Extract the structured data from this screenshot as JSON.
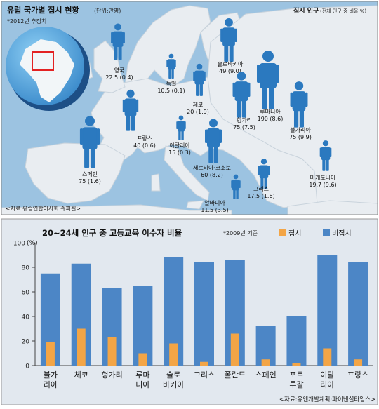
{
  "map": {
    "title": "유럽 국가별 집시 현황",
    "unit_note": "(단위:만명)",
    "estimate_note": "*2012년 추정치",
    "legend_label": "집시 인구",
    "legend_note": "(전체 인구 중 비율 %)",
    "source": "<자료:유럽연합이사회 슈피겔>",
    "colors": {
      "sea": "#9cc3e1",
      "land": "#e9edf1",
      "figure": "#2b79bf"
    },
    "countries": [
      {
        "name": "영국",
        "value": "22.5 (0.4)"
      },
      {
        "name": "독일",
        "value": "10.5 (0.1)"
      },
      {
        "name": "슬로바키아",
        "value": "49 (9.0)"
      },
      {
        "name": "체코",
        "value": "20 (1.9)"
      },
      {
        "name": "프랑스",
        "value": "40 (0.6)"
      },
      {
        "name": "헝가리",
        "value": "75 (7.5)"
      },
      {
        "name": "루마니아",
        "value": "190 (8.6)"
      },
      {
        "name": "불가리아",
        "value": "75 (9.9)"
      },
      {
        "name": "이탈리아",
        "value": "15 (0.3)"
      },
      {
        "name": "스페인",
        "value": "75 (1.6)"
      },
      {
        "name": "세르비아·코소보",
        "value": "60 (8.2)"
      },
      {
        "name": "마케도니아",
        "value": "19.7 (9.6)"
      },
      {
        "name": "그리스",
        "value": "17.5 (1.6)"
      },
      {
        "name": "알바니아",
        "value": "11.5 (3.5)"
      }
    ]
  },
  "bar_section": {
    "title": "20~24세 인구 중 고등교육 이수자 비율",
    "year_note": "*2009년 기준",
    "source": "<자료:유엔개발계획·파이낸셜타임스>",
    "y_unit": "(%)",
    "colors": {
      "roma": "#f3a546",
      "non_roma": "#4c86c6",
      "panel": "#e2e8ef"
    }
  },
  "chart_data": {
    "type": "bar",
    "title": "20~24세 인구 중 고등교육 이수자 비율",
    "categories": [
      "불가리아",
      "체코",
      "헝가리",
      "루마니아",
      "슬로바키아",
      "그리스",
      "폴란드",
      "스페인",
      "포르투갈",
      "이탈리아",
      "프랑스"
    ],
    "category_lines": [
      [
        "불가",
        "리아"
      ],
      [
        "체코"
      ],
      [
        "헝가리"
      ],
      [
        "루마",
        "니아"
      ],
      [
        "슬로",
        "바키아"
      ],
      [
        "그리스"
      ],
      [
        "폴란드"
      ],
      [
        "스페인"
      ],
      [
        "포르",
        "투갈"
      ],
      [
        "이탈",
        "리아"
      ],
      [
        "프랑스"
      ]
    ],
    "series": [
      {
        "name": "집시",
        "values": [
          19,
          30,
          23,
          10,
          18,
          3,
          26,
          5,
          2,
          14,
          5
        ]
      },
      {
        "name": "비집시",
        "values": [
          75,
          83,
          63,
          65,
          88,
          84,
          86,
          32,
          40,
          90,
          84
        ]
      }
    ],
    "ylim": [
      0,
      100
    ],
    "yticks": [
      0,
      20,
      40,
      60,
      80,
      100
    ],
    "ytick_labels": [
      "0",
      "20",
      "40",
      "60",
      "80",
      "100"
    ],
    "grid": false,
    "legend": "top-right"
  }
}
